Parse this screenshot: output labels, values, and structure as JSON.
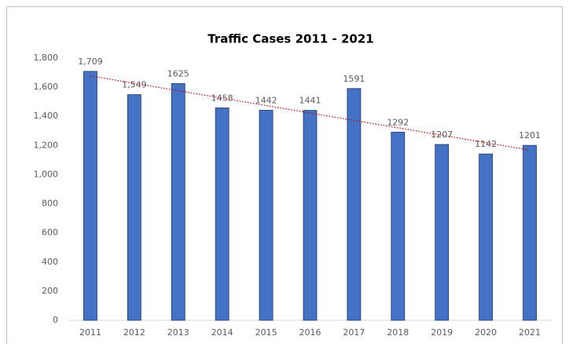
{
  "chart_data": {
    "type": "bar",
    "title": "Traffic Cases 2011 - 2021",
    "categories": [
      "2011",
      "2012",
      "2013",
      "2014",
      "2015",
      "2016",
      "2017",
      "2018",
      "2019",
      "2020",
      "2021"
    ],
    "values": [
      1709,
      1549,
      1625,
      1458,
      1442,
      1441,
      1591,
      1292,
      1207,
      1142,
      1201
    ],
    "value_labels": [
      "1,709",
      "1,549",
      "1625",
      "1458",
      "1442",
      "1441",
      "1591",
      "1292",
      "1207",
      "1142",
      "1201"
    ],
    "color": "#4472c4",
    "ylim": [
      0,
      1800
    ],
    "yticks": [
      0,
      200,
      400,
      600,
      800,
      {
        "value": 1000,
        "label": "1,000"
      },
      {
        "value": 1200,
        "label": "1,200"
      },
      {
        "value": 1400,
        "label": "1,400"
      },
      {
        "value": 1600,
        "label": "1,600"
      },
      {
        "value": 1800,
        "label": "1,800"
      }
    ],
    "grid": false,
    "trendline": {
      "type": "linear",
      "color": "#c00000"
    }
  }
}
